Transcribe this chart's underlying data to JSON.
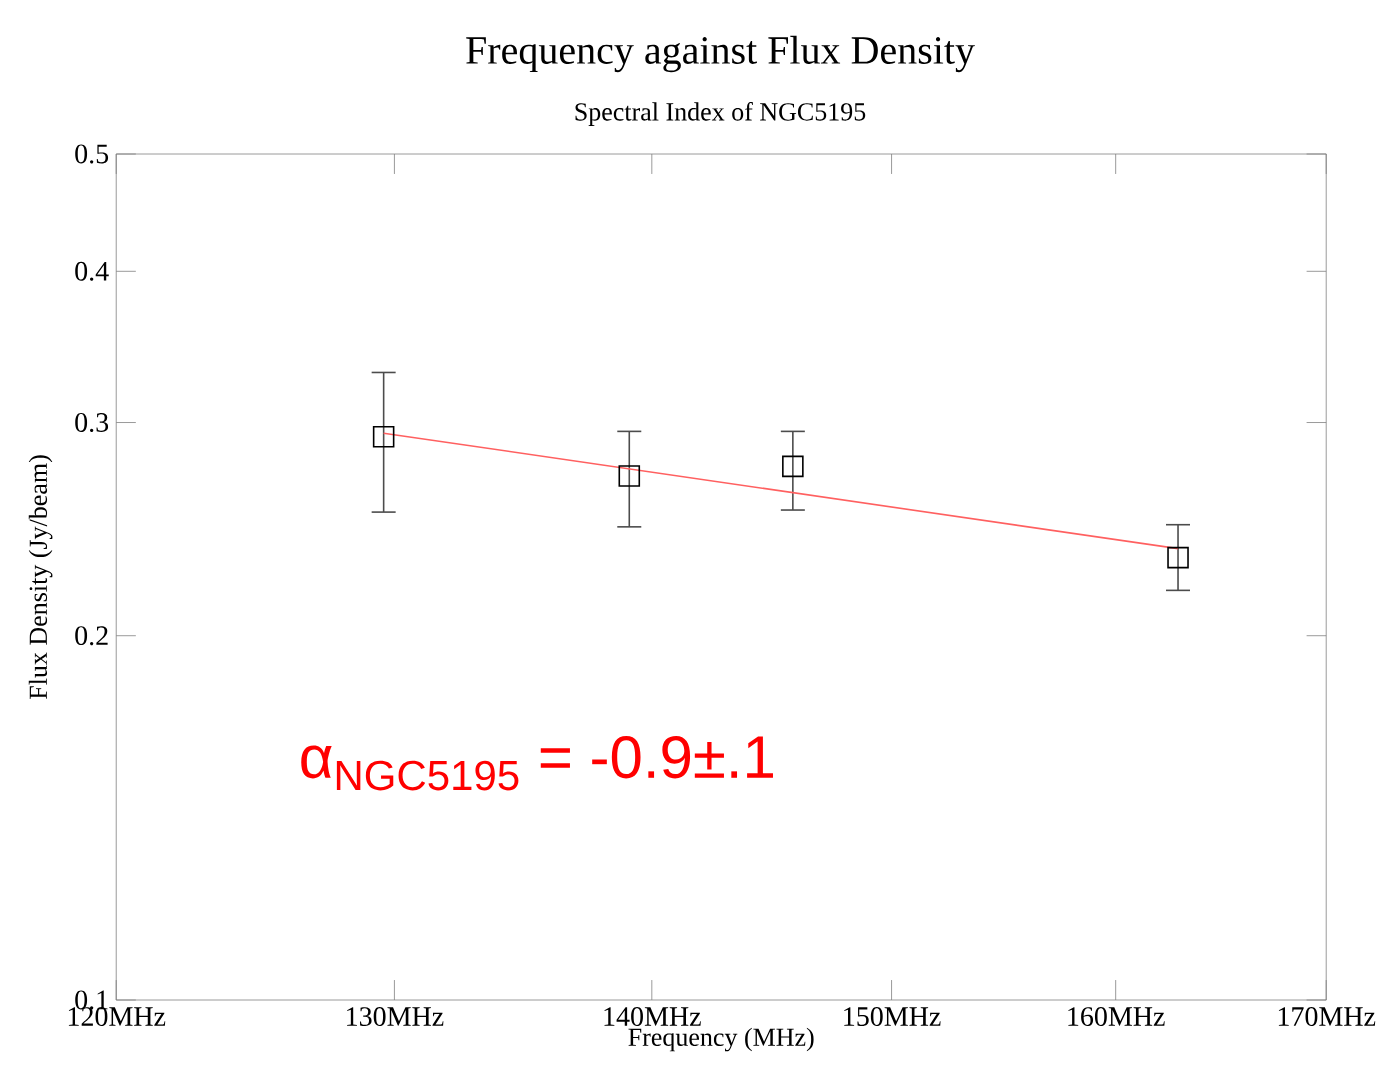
{
  "chart_data": {
    "type": "scatter",
    "title": "Frequency against Flux Density",
    "subtitle": "Spectral Index of NGC5195",
    "xlabel": "Frequency (MHz)",
    "ylabel": "Flux Density  (Jy/beam)",
    "log": "xy",
    "xlim": [
      120,
      170
    ],
    "ylim": [
      0.1,
      0.5
    ],
    "xticks": [
      {
        "value": 120,
        "label": "120MHz"
      },
      {
        "value": 130,
        "label": "130MHz"
      },
      {
        "value": 140,
        "label": "140MHz"
      },
      {
        "value": 150,
        "label": "150MHz"
      },
      {
        "value": 160,
        "label": "160MHz"
      },
      {
        "value": 170,
        "label": "170MHz"
      }
    ],
    "yticks": [
      0.1,
      0.2,
      0.3,
      0.4,
      0.5
    ],
    "marker": "square",
    "annotations": [
      "α$_{NGC5195}$ = -0.9±.1"
    ],
    "series": [
      {
        "color": "#000000",
        "x": [
          129.6,
          139.1,
          145.8,
          162.9
        ],
        "values": [
          0.292,
          0.271,
          0.276,
          0.232
        ],
        "errors": [
          [
            0.253,
            0.33
          ],
          [
            0.246,
            0.295
          ],
          [
            0.254,
            0.295
          ],
          [
            0.218,
            0.247
          ]
        ]
      },
      {
        "type": "line",
        "color": "#ff6060",
        "marker": "none",
        "x": [
          129.6,
          162.9
        ],
        "values": [
          0.294,
          0.236
        ]
      }
    ]
  }
}
